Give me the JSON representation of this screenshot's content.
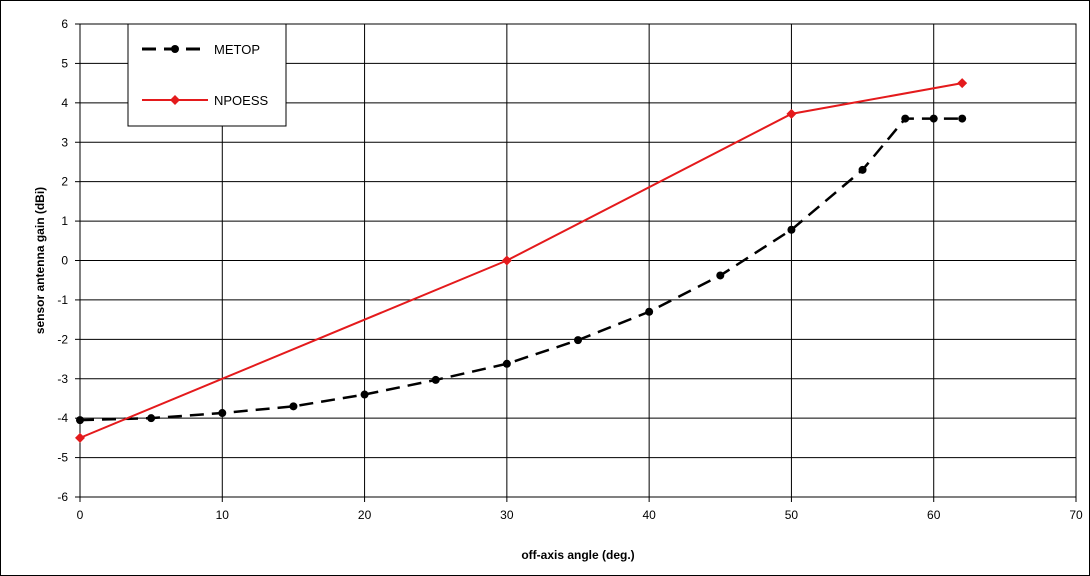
{
  "chart_data": {
    "type": "line",
    "title": "",
    "xlabel": "off-axis angle (deg.)",
    "ylabel": "sensor antenna gain (dBi)",
    "xlim": [
      0,
      70
    ],
    "ylim": [
      -6,
      6
    ],
    "x_ticks": [
      0,
      10,
      20,
      30,
      40,
      50,
      60,
      70
    ],
    "y_ticks": [
      -6,
      -5,
      -4,
      -3,
      -2,
      -1,
      0,
      1,
      2,
      3,
      4,
      5,
      6
    ],
    "grid": true,
    "legend_position": "top-left",
    "series": [
      {
        "name": "METOP",
        "color": "#000000",
        "line_style": "dashed",
        "marker": "circle",
        "x": [
          0,
          5,
          10,
          15,
          20,
          25,
          30,
          35,
          40,
          45,
          50,
          55,
          58,
          60,
          62
        ],
        "y": [
          -4.05,
          -4.0,
          -3.87,
          -3.7,
          -3.4,
          -3.03,
          -2.62,
          -2.02,
          -1.3,
          -0.38,
          0.78,
          2.3,
          3.6,
          3.6,
          3.6
        ]
      },
      {
        "name": "NPOESS",
        "color": "#e41a1c",
        "line_style": "solid",
        "marker": "diamond",
        "x": [
          0,
          30,
          50,
          62
        ],
        "y": [
          -4.5,
          0.0,
          3.72,
          4.5
        ]
      }
    ]
  }
}
